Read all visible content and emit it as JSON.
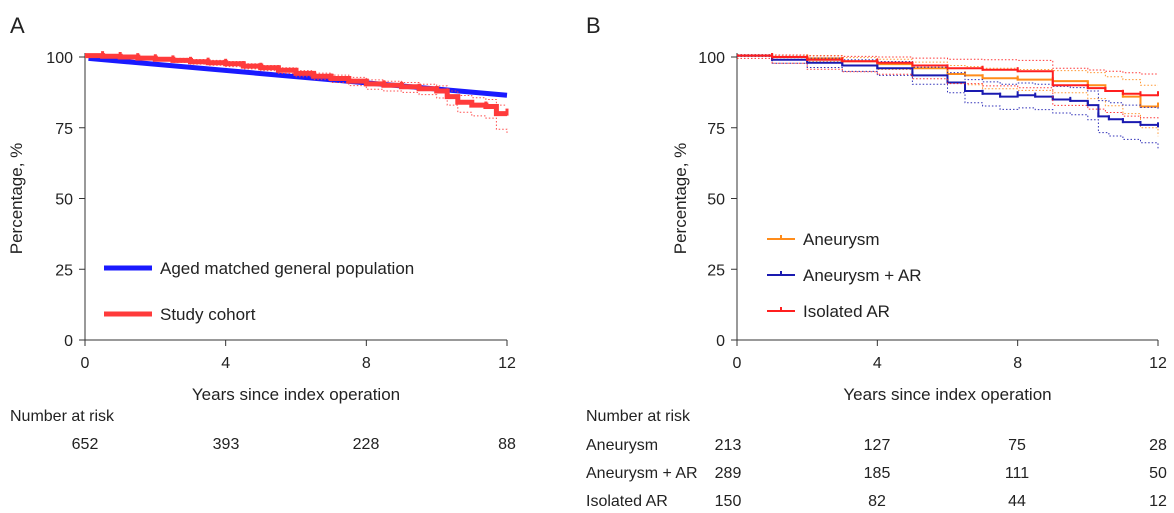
{
  "chart_data": [
    {
      "panel_label": "A",
      "type": "line",
      "xlabel": "Years since index operation",
      "ylabel": "Percentage, %",
      "xlim": [
        0,
        12
      ],
      "ylim": [
        0,
        100
      ],
      "xticks": [
        "0",
        "4",
        "8",
        "12"
      ],
      "yticks": [
        "0",
        "25",
        "50",
        "75",
        "100"
      ],
      "legend_position": "bottom-left",
      "series": [
        {
          "name": "Aged matched general population",
          "color": "#1a1aff",
          "style": "solid-thick",
          "x": [
            0.1,
            12
          ],
          "y": [
            99.5,
            86.5
          ]
        },
        {
          "name": "Study cohort",
          "color": "#ff3b3b",
          "style": "step-thick",
          "x": [
            0,
            0.5,
            1,
            1.5,
            2,
            2.5,
            3,
            3.5,
            4,
            4.5,
            5,
            5.5,
            6,
            6.5,
            7,
            7.5,
            8,
            8.5,
            9,
            9.5,
            10,
            10.3,
            10.6,
            11,
            11.4,
            11.7,
            12
          ],
          "y": [
            100.5,
            100.3,
            100,
            99.6,
            99.2,
            98.8,
            98.3,
            98,
            97.6,
            96.8,
            96.2,
            95.3,
            94.2,
            93.2,
            92.4,
            91.5,
            90.5,
            90,
            89.5,
            88.8,
            88,
            86,
            84,
            83,
            82.5,
            80,
            80
          ],
          "ci_upper": [
            100.8,
            100.6,
            100.4,
            100.1,
            99.8,
            99.5,
            99.1,
            98.8,
            98.4,
            97.6,
            97,
            96.2,
            95.2,
            94.3,
            93.6,
            92.8,
            91.9,
            91.4,
            91,
            90.4,
            89.8,
            88,
            86.4,
            85.6,
            85,
            83,
            83
          ],
          "ci_lower": [
            100.2,
            100,
            99.6,
            99.1,
            98.6,
            98.1,
            97.5,
            97.1,
            96.6,
            95.8,
            95.2,
            94.2,
            93,
            92,
            91,
            89.9,
            88.6,
            88,
            87.5,
            86.7,
            85.5,
            83,
            80.5,
            79.2,
            78.4,
            74.5,
            73
          ]
        }
      ],
      "number_at_risk": {
        "title": "Number at risk",
        "rows": [
          {
            "label": "",
            "values": [
              "652",
              "393",
              "228",
              "88"
            ]
          }
        ]
      }
    },
    {
      "panel_label": "B",
      "type": "line",
      "xlabel": "Years since index operation",
      "ylabel": "Percentage, %",
      "xlim": [
        0,
        12
      ],
      "ylim": [
        0,
        100
      ],
      "xticks": [
        "0",
        "4",
        "8",
        "12"
      ],
      "yticks": [
        "0",
        "25",
        "50",
        "75",
        "100"
      ],
      "legend_position": "bottom-left",
      "series": [
        {
          "name": "Aneurysm",
          "color": "#ff8c1a",
          "style": "step",
          "x": [
            0,
            1,
            2,
            3,
            4,
            5,
            6,
            6.5,
            7,
            8,
            9,
            10,
            10.5,
            11,
            11.5,
            12
          ],
          "y": [
            100.5,
            100,
            99.5,
            98.5,
            97.5,
            96,
            94,
            93.5,
            92.5,
            92,
            91.5,
            90,
            88,
            86,
            82.5,
            82.5
          ],
          "ci_upper": [
            100.8,
            100.6,
            100.5,
            99.8,
            99.2,
            98.2,
            97,
            96.6,
            96,
            95.6,
            95.2,
            94.5,
            93,
            92,
            90,
            90
          ],
          "ci_lower": [
            100.2,
            99.3,
            98.4,
            96.9,
            95.6,
            93.6,
            90.8,
            90.2,
            88.8,
            88.2,
            87.4,
            85.3,
            82.8,
            80,
            75,
            72
          ]
        },
        {
          "name": "Aneurysm + AR",
          "color": "#1a1ab0",
          "style": "step",
          "x": [
            0,
            1,
            2,
            3,
            4,
            5,
            6,
            6.5,
            7,
            7.5,
            8,
            8.5,
            9,
            9.5,
            10,
            10.3,
            10.6,
            11,
            11.5,
            12
          ],
          "y": [
            100.5,
            99,
            98,
            97,
            96,
            93.5,
            91,
            88,
            87,
            86,
            86.5,
            86,
            85,
            84.5,
            83,
            79,
            78,
            77,
            76,
            75.5
          ],
          "ci_upper": [
            100.8,
            100.2,
            99.6,
            99,
            98.4,
            96.4,
            94.5,
            92,
            91.2,
            90.4,
            90.8,
            90.4,
            89.6,
            89.2,
            88,
            84.6,
            83.8,
            83,
            82.2,
            81.5
          ],
          "ci_lower": [
            100.2,
            97.8,
            96.3,
            94.9,
            93.5,
            90.4,
            87.4,
            83.8,
            82.7,
            81.5,
            82,
            81.4,
            80.2,
            79.6,
            77.8,
            73.3,
            72.1,
            70.9,
            69.7,
            67
          ]
        },
        {
          "name": "Isolated AR",
          "color": "#ff1f1f",
          "style": "step",
          "x": [
            0,
            1,
            2,
            3,
            4,
            5,
            6,
            7,
            8,
            9,
            10,
            10.5,
            11,
            11.5,
            12
          ],
          "y": [
            100.5,
            100,
            99,
            98.5,
            98,
            97,
            96,
            95.5,
            95,
            90,
            89,
            88,
            87,
            86.5,
            86.5
          ],
          "ci_upper": [
            100.8,
            100.7,
            100.4,
            100.2,
            100,
            99.6,
            99.2,
            99,
            98.8,
            96,
            95.4,
            95,
            94.4,
            94,
            94
          ],
          "ci_lower": [
            99.5,
            97.8,
            95.7,
            94.8,
            93.9,
            92.3,
            90.6,
            89.8,
            89.1,
            82.9,
            81.6,
            80.4,
            79.1,
            78.5,
            78
          ]
        }
      ],
      "number_at_risk": {
        "title": "Number at risk",
        "rows": [
          {
            "label": "Aneurysm",
            "values": [
              "213",
              "127",
              "75",
              "28"
            ]
          },
          {
            "label": "Aneurysm + AR",
            "values": [
              "289",
              "185",
              "111",
              "50"
            ]
          },
          {
            "label": "Isolated AR",
            "values": [
              "150",
              "82",
              "44",
              "12"
            ]
          }
        ]
      }
    }
  ]
}
